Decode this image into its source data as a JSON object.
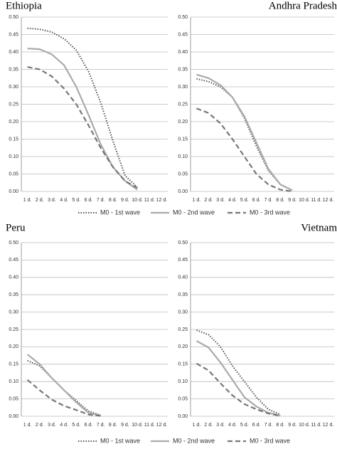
{
  "chart_data": [
    {
      "type": "line",
      "title": "Ethiopia",
      "categories": [
        "1 d.",
        "2 d.",
        "3 d.",
        "4 d.",
        "5 d.",
        "6 d.",
        "7 d.",
        "8 d.",
        "9 d.",
        "10 d.",
        "11 d.",
        "12 d."
      ],
      "ylim": [
        0,
        0.5
      ],
      "yticks": [
        {
          "value": 0,
          "label": "0.00"
        },
        0.05,
        {
          "value": 0.1,
          "label": "0.10"
        },
        0.15,
        {
          "value": 0.2,
          "label": "0.20"
        },
        0.25,
        {
          "value": 0.3,
          "label": "0.30"
        },
        0.35,
        {
          "value": 0.4,
          "label": "0.40"
        },
        0.45,
        {
          "value": 0.5,
          "label": "0.50"
        }
      ],
      "grid": true,
      "series": [
        {
          "name": "M0 - 1st wave",
          "color": "#555555",
          "style": "dotted",
          "values": [
            0.468,
            0.465,
            0.457,
            0.438,
            0.405,
            0.345,
            0.255,
            0.145,
            0.045,
            0.012,
            null,
            null
          ]
        },
        {
          "name": "M0 - 2nd wave",
          "color": "#aaaaaa",
          "style": "solid",
          "values": [
            0.41,
            0.408,
            0.393,
            0.362,
            0.3,
            0.22,
            0.135,
            0.07,
            0.03,
            0.005,
            null,
            null
          ]
        },
        {
          "name": "M0 - 3rd wave",
          "color": "#777777",
          "style": "dashed",
          "values": [
            0.357,
            0.35,
            0.33,
            0.295,
            0.25,
            0.19,
            0.125,
            0.07,
            0.03,
            0.01,
            null,
            null
          ]
        }
      ]
    },
    {
      "type": "line",
      "title": "Andhra Pradesh",
      "categories": [
        "1 d.",
        "2 d.",
        "3 d.",
        "4 d.",
        "5 d.",
        "6 d.",
        "7 d.",
        "8 d.",
        "9 d.",
        "10 d.",
        "11 d.",
        "12 d."
      ],
      "ylim": [
        0,
        0.5
      ],
      "yticks": [
        {
          "value": 0,
          "label": "0.00"
        },
        0.05,
        {
          "value": 0.1,
          "label": "0.10"
        },
        0.15,
        {
          "value": 0.2,
          "label": "0.20"
        },
        0.25,
        {
          "value": 0.3,
          "label": "0.30"
        },
        0.35,
        {
          "value": 0.4,
          "label": "0.40"
        },
        0.45,
        {
          "value": 0.5,
          "label": "0.50"
        }
      ],
      "grid": true,
      "series": [
        {
          "name": "M0 - 1st wave",
          "color": "#555555",
          "style": "dotted",
          "values": [
            0.323,
            0.315,
            0.3,
            0.27,
            0.21,
            0.13,
            0.06,
            0.02,
            0.003,
            null,
            null,
            null
          ]
        },
        {
          "name": "M0 - 2nd wave",
          "color": "#aaaaaa",
          "style": "solid",
          "values": [
            0.335,
            0.325,
            0.305,
            0.27,
            0.215,
            0.14,
            0.065,
            0.02,
            0.003,
            null,
            null,
            null
          ]
        },
        {
          "name": "M0 - 3rd wave",
          "color": "#777777",
          "style": "dashed",
          "values": [
            0.238,
            0.225,
            0.195,
            0.15,
            0.1,
            0.05,
            0.02,
            0.005,
            0,
            null,
            null,
            null
          ]
        }
      ]
    },
    {
      "type": "line",
      "title": "Peru",
      "categories": [
        "1 d.",
        "2 d.",
        "3 d.",
        "4 d.",
        "5 d.",
        "6 d.",
        "7 d.",
        "8 d.",
        "9 d.",
        "10 d.",
        "11 d.",
        "12 d."
      ],
      "ylim": [
        0,
        0.5
      ],
      "yticks": [
        {
          "value": 0,
          "label": "0.00"
        },
        0.05,
        {
          "value": 0.1,
          "label": "0.10"
        },
        0.15,
        {
          "value": 0.2,
          "label": "0.20"
        },
        0.25,
        {
          "value": 0.3,
          "label": "0.30"
        },
        0.35,
        {
          "value": 0.4,
          "label": "0.40"
        },
        0.45,
        {
          "value": 0.5,
          "label": "0.50"
        }
      ],
      "grid": true,
      "series": [
        {
          "name": "M0 - 1st wave",
          "color": "#555555",
          "style": "dotted",
          "values": [
            0.16,
            0.145,
            0.11,
            0.075,
            0.045,
            0.015,
            0.003,
            null,
            null,
            null,
            null,
            null
          ]
        },
        {
          "name": "M0 - 2nd wave",
          "color": "#aaaaaa",
          "style": "solid",
          "values": [
            0.178,
            0.15,
            0.11,
            0.075,
            0.04,
            0.01,
            0.002,
            null,
            null,
            null,
            null,
            null
          ]
        },
        {
          "name": "M0 - 3rd wave",
          "color": "#777777",
          "style": "dashed",
          "values": [
            0.105,
            0.075,
            0.048,
            0.03,
            0.018,
            0.005,
            0.001,
            null,
            null,
            null,
            null,
            null
          ]
        }
      ]
    },
    {
      "type": "line",
      "title": "Vietnam",
      "categories": [
        "1 d.",
        "2 d.",
        "3 d.",
        "4 d.",
        "5 d.",
        "6 d.",
        "7 d.",
        "8 d.",
        "9 d.",
        "10 d.",
        "11 d.",
        "12 d."
      ],
      "ylim": [
        0,
        0.5
      ],
      "yticks": [
        {
          "value": 0,
          "label": "0.00"
        },
        0.05,
        {
          "value": 0.1,
          "label": "0.10"
        },
        0.15,
        {
          "value": 0.2,
          "label": "0.20"
        },
        0.25,
        {
          "value": 0.3,
          "label": "0.30"
        },
        0.35,
        {
          "value": 0.4,
          "label": "0.40"
        },
        0.45,
        {
          "value": 0.5,
          "label": "0.50"
        }
      ],
      "grid": true,
      "series": [
        {
          "name": "M0 - 1st wave",
          "color": "#555555",
          "style": "dotted",
          "values": [
            0.248,
            0.235,
            0.2,
            0.145,
            0.1,
            0.055,
            0.02,
            0.005,
            null,
            null,
            null,
            null
          ]
        },
        {
          "name": "M0 - 2nd wave",
          "color": "#aaaaaa",
          "style": "solid",
          "values": [
            0.217,
            0.198,
            0.155,
            0.105,
            0.055,
            0.028,
            0.01,
            0.002,
            null,
            null,
            null,
            null
          ]
        },
        {
          "name": "M0 - 3rd wave",
          "color": "#777777",
          "style": "dashed",
          "values": [
            0.152,
            0.132,
            0.095,
            0.06,
            0.035,
            0.02,
            0.008,
            0.001,
            null,
            null,
            null,
            null
          ]
        }
      ]
    }
  ]
}
